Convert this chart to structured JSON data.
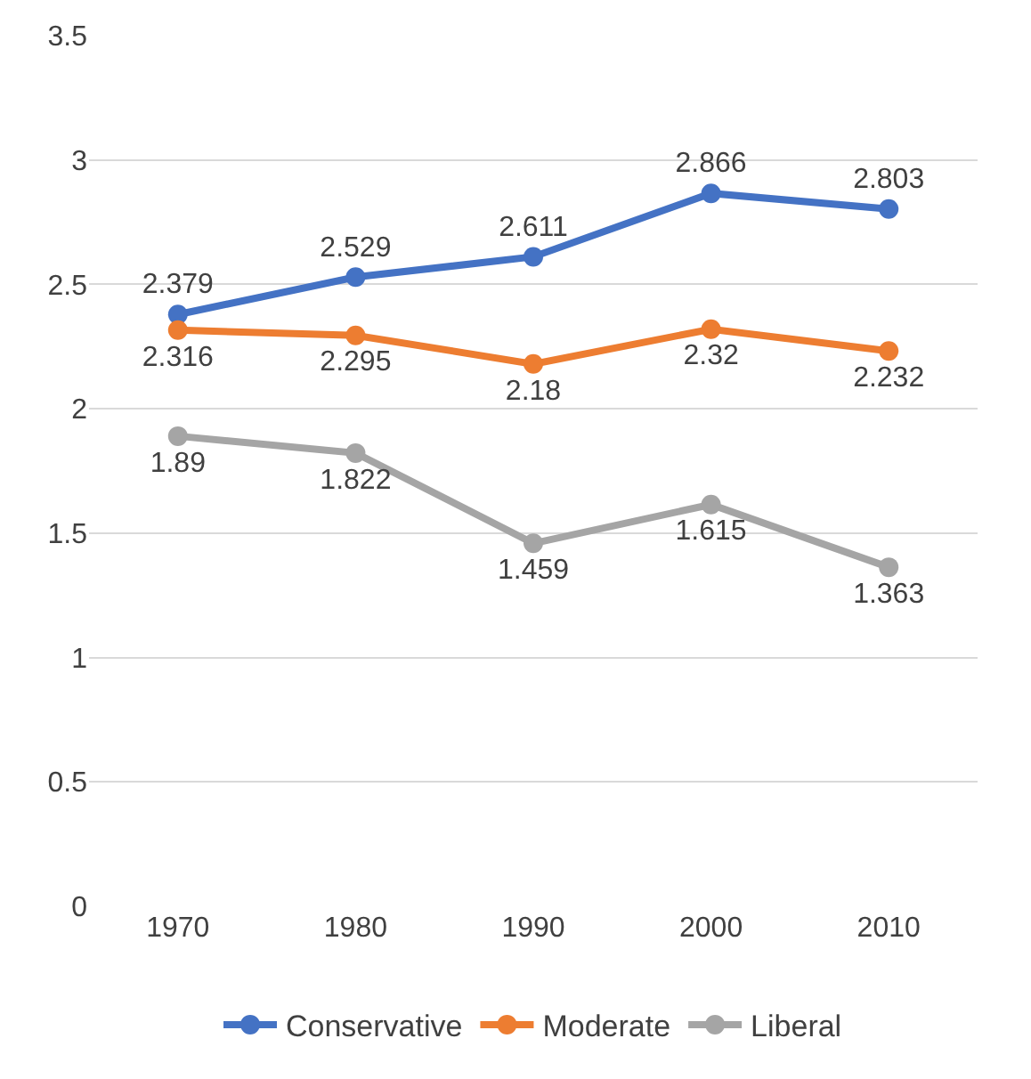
{
  "chart_data": {
    "type": "line",
    "categories": [
      "1970",
      "1980",
      "1990",
      "2000",
      "2010"
    ],
    "series": [
      {
        "name": "Conservative",
        "color": "#4472c4",
        "values": [
          2.379,
          2.529,
          2.611,
          2.866,
          2.803
        ]
      },
      {
        "name": "Moderate",
        "color": "#ed7d31",
        "values": [
          2.316,
          2.295,
          2.18,
          2.32,
          2.232
        ]
      },
      {
        "name": "Liberal",
        "color": "#a5a5a5",
        "values": [
          1.89,
          1.822,
          1.459,
          1.615,
          1.363
        ]
      }
    ],
    "ylim": [
      0,
      3.5
    ],
    "yticks": [
      0,
      0.5,
      1,
      1.5,
      2,
      2.5,
      3,
      3.5
    ],
    "grid": "y",
    "legend": "bottom",
    "marker": "circle",
    "line_style": "solid",
    "data_labels": true
  }
}
